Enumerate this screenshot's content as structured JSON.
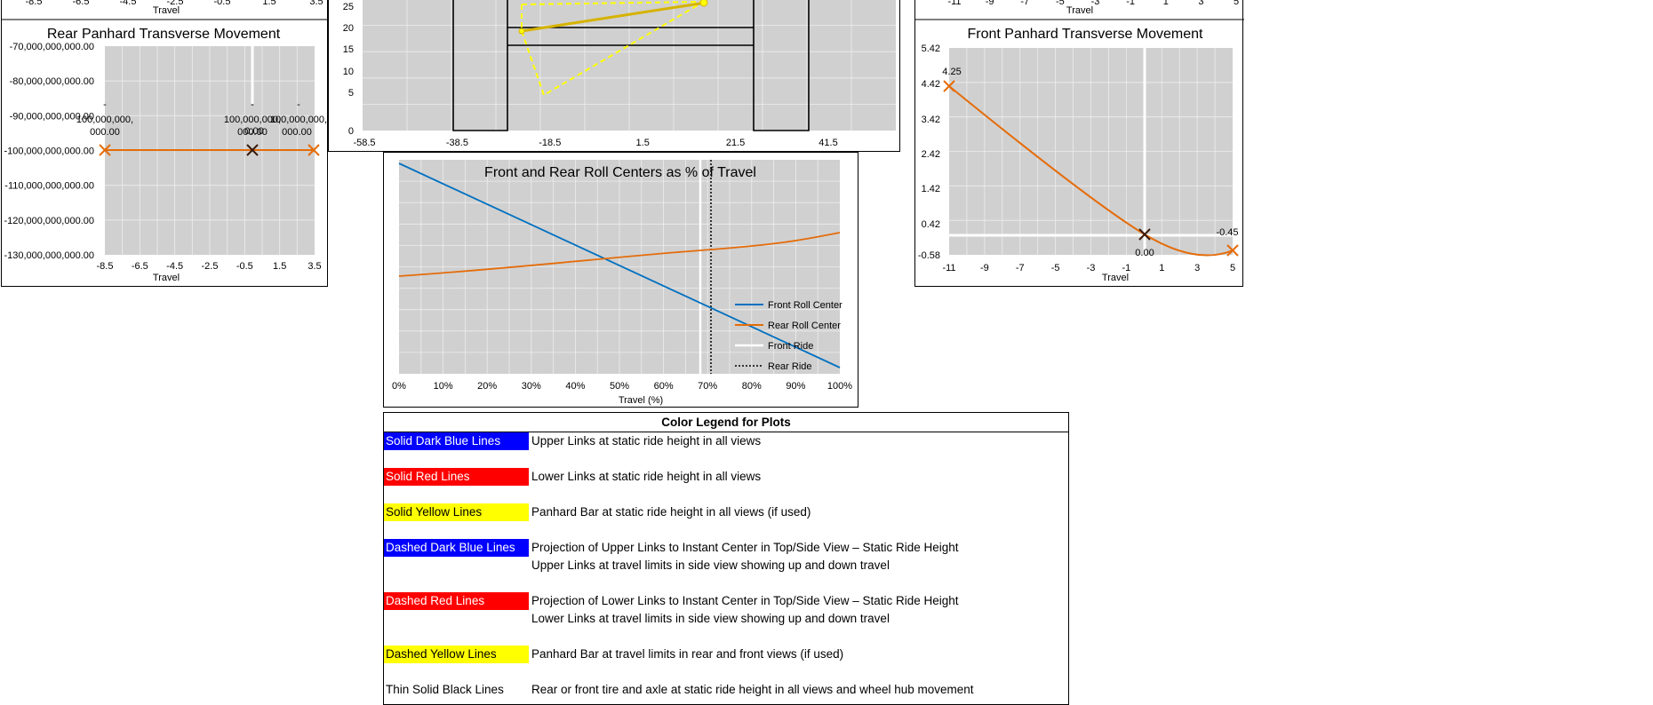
{
  "charts": {
    "rear_panhard": {
      "title": "Rear Panhard Transverse Movement",
      "top_partial_axis": {
        "ticks": [
          "-8.5",
          "-6.5",
          "-4.5",
          "-2.5",
          "-0.5",
          "1.5",
          "3.5"
        ],
        "xlabel": "Travel"
      },
      "y_ticks": [
        "-70,000,000,000.00",
        "-80,000,000,000.00",
        "-90,000,000,000.00",
        "-100,000,000,000.00",
        "-110,000,000,000.00",
        "-120,000,000,000.00",
        "-130,000,000,000.00"
      ],
      "x_ticks": [
        "-8.5",
        "-6.5",
        "-4.5",
        "-2.5",
        "-0.5",
        "1.5",
        "3.5"
      ],
      "xlabel": "Travel",
      "labels": [
        {
          "text_a": "-",
          "text_b": "100,000,000,",
          "text_c": "000.00"
        },
        {
          "text_a": "-",
          "text_b": "100,000,000,",
          "text_c": "000.00"
        },
        {
          "text_a": "-",
          "text_b": "100,000,000,",
          "text_c": "000.00"
        }
      ],
      "overlap_label": "0.00",
      "line_color": "#E46C0A",
      "center_marker_color": "#3A1A0A"
    },
    "middle_top": {
      "y_ticks": [
        "25",
        "20",
        "15",
        "10",
        "5",
        "0"
      ],
      "x_ticks": [
        "-58.5",
        "-38.5",
        "-18.5",
        "1.5",
        "21.5",
        "41.5"
      ]
    },
    "front_panhard": {
      "title": "Front Panhard Transverse Movement",
      "top_partial_axis": {
        "ticks": [
          "-11",
          "-9",
          "-7",
          "-5",
          "-3",
          "-1",
          "1",
          "3",
          "5"
        ],
        "xlabel": "Travel"
      },
      "y_ticks": [
        "5.42",
        "4.42",
        "3.42",
        "2.42",
        "1.42",
        "0.42",
        "-0.58"
      ],
      "x_ticks": [
        "-11",
        "-9",
        "-7",
        "-5",
        "-3",
        "-1",
        "1",
        "3",
        "5"
      ],
      "xlabel": "Travel",
      "label_start": "4.25",
      "label_end": "-0.45",
      "label_center": "0.00",
      "line_color": "#E46C0A"
    },
    "roll_centers": {
      "title": "Front and Rear Roll Centers as % of Travel",
      "x_ticks": [
        "0%",
        "10%",
        "20%",
        "30%",
        "40%",
        "50%",
        "60%",
        "70%",
        "80%",
        "90%",
        "100%"
      ],
      "xlabel": "Travel (%)",
      "legend": [
        "Front Roll Center",
        "Rear Roll Center",
        "Front Ride",
        "Rear Ride"
      ],
      "front_color": "#0070C0",
      "rear_color": "#E46C0A"
    }
  },
  "legend": {
    "title": "Color Legend for Plots",
    "rows": [
      {
        "swatch": "Solid Dark Blue Lines",
        "bg": "#0000FF",
        "fg": "#FFFFFF",
        "lines": [
          "Upper Links at static ride height in all views"
        ]
      },
      {
        "swatch": "Solid Red Lines",
        "bg": "#FF0000",
        "fg": "#FFFFFF",
        "lines": [
          "Lower Links at static ride height in all views"
        ]
      },
      {
        "swatch": "Solid Yellow Lines",
        "bg": "#FFFF00",
        "fg": "#000000",
        "lines": [
          "Panhard Bar at static ride height in all views (if used)"
        ]
      },
      {
        "swatch": "Dashed Dark Blue Lines",
        "bg": "#0000FF",
        "fg": "#FFFFFF",
        "lines": [
          "Projection of Upper Links to Instant Center in Top/Side View – Static Ride Height",
          "Upper Links at travel limits in side view showing up and down travel"
        ]
      },
      {
        "swatch": "Dashed Red Lines",
        "bg": "#FF0000",
        "fg": "#FFFFFF",
        "lines": [
          "Projection of Lower Links to Instant Center in Top/Side View – Static Ride Height",
          "Lower Links at travel limits in side view showing up and down travel"
        ]
      },
      {
        "swatch": "Dashed Yellow Lines",
        "bg": "#FFFF00",
        "fg": "#000000",
        "lines": [
          "Panhard Bar at travel limits in rear and front views (if used)"
        ]
      },
      {
        "swatch": "Thin Solid Black Lines",
        "bg": "#FFFFFF",
        "fg": "#000000",
        "lines": [
          "Rear or front tire and axle at static ride height in all views and wheel hub movement"
        ]
      }
    ]
  }
}
